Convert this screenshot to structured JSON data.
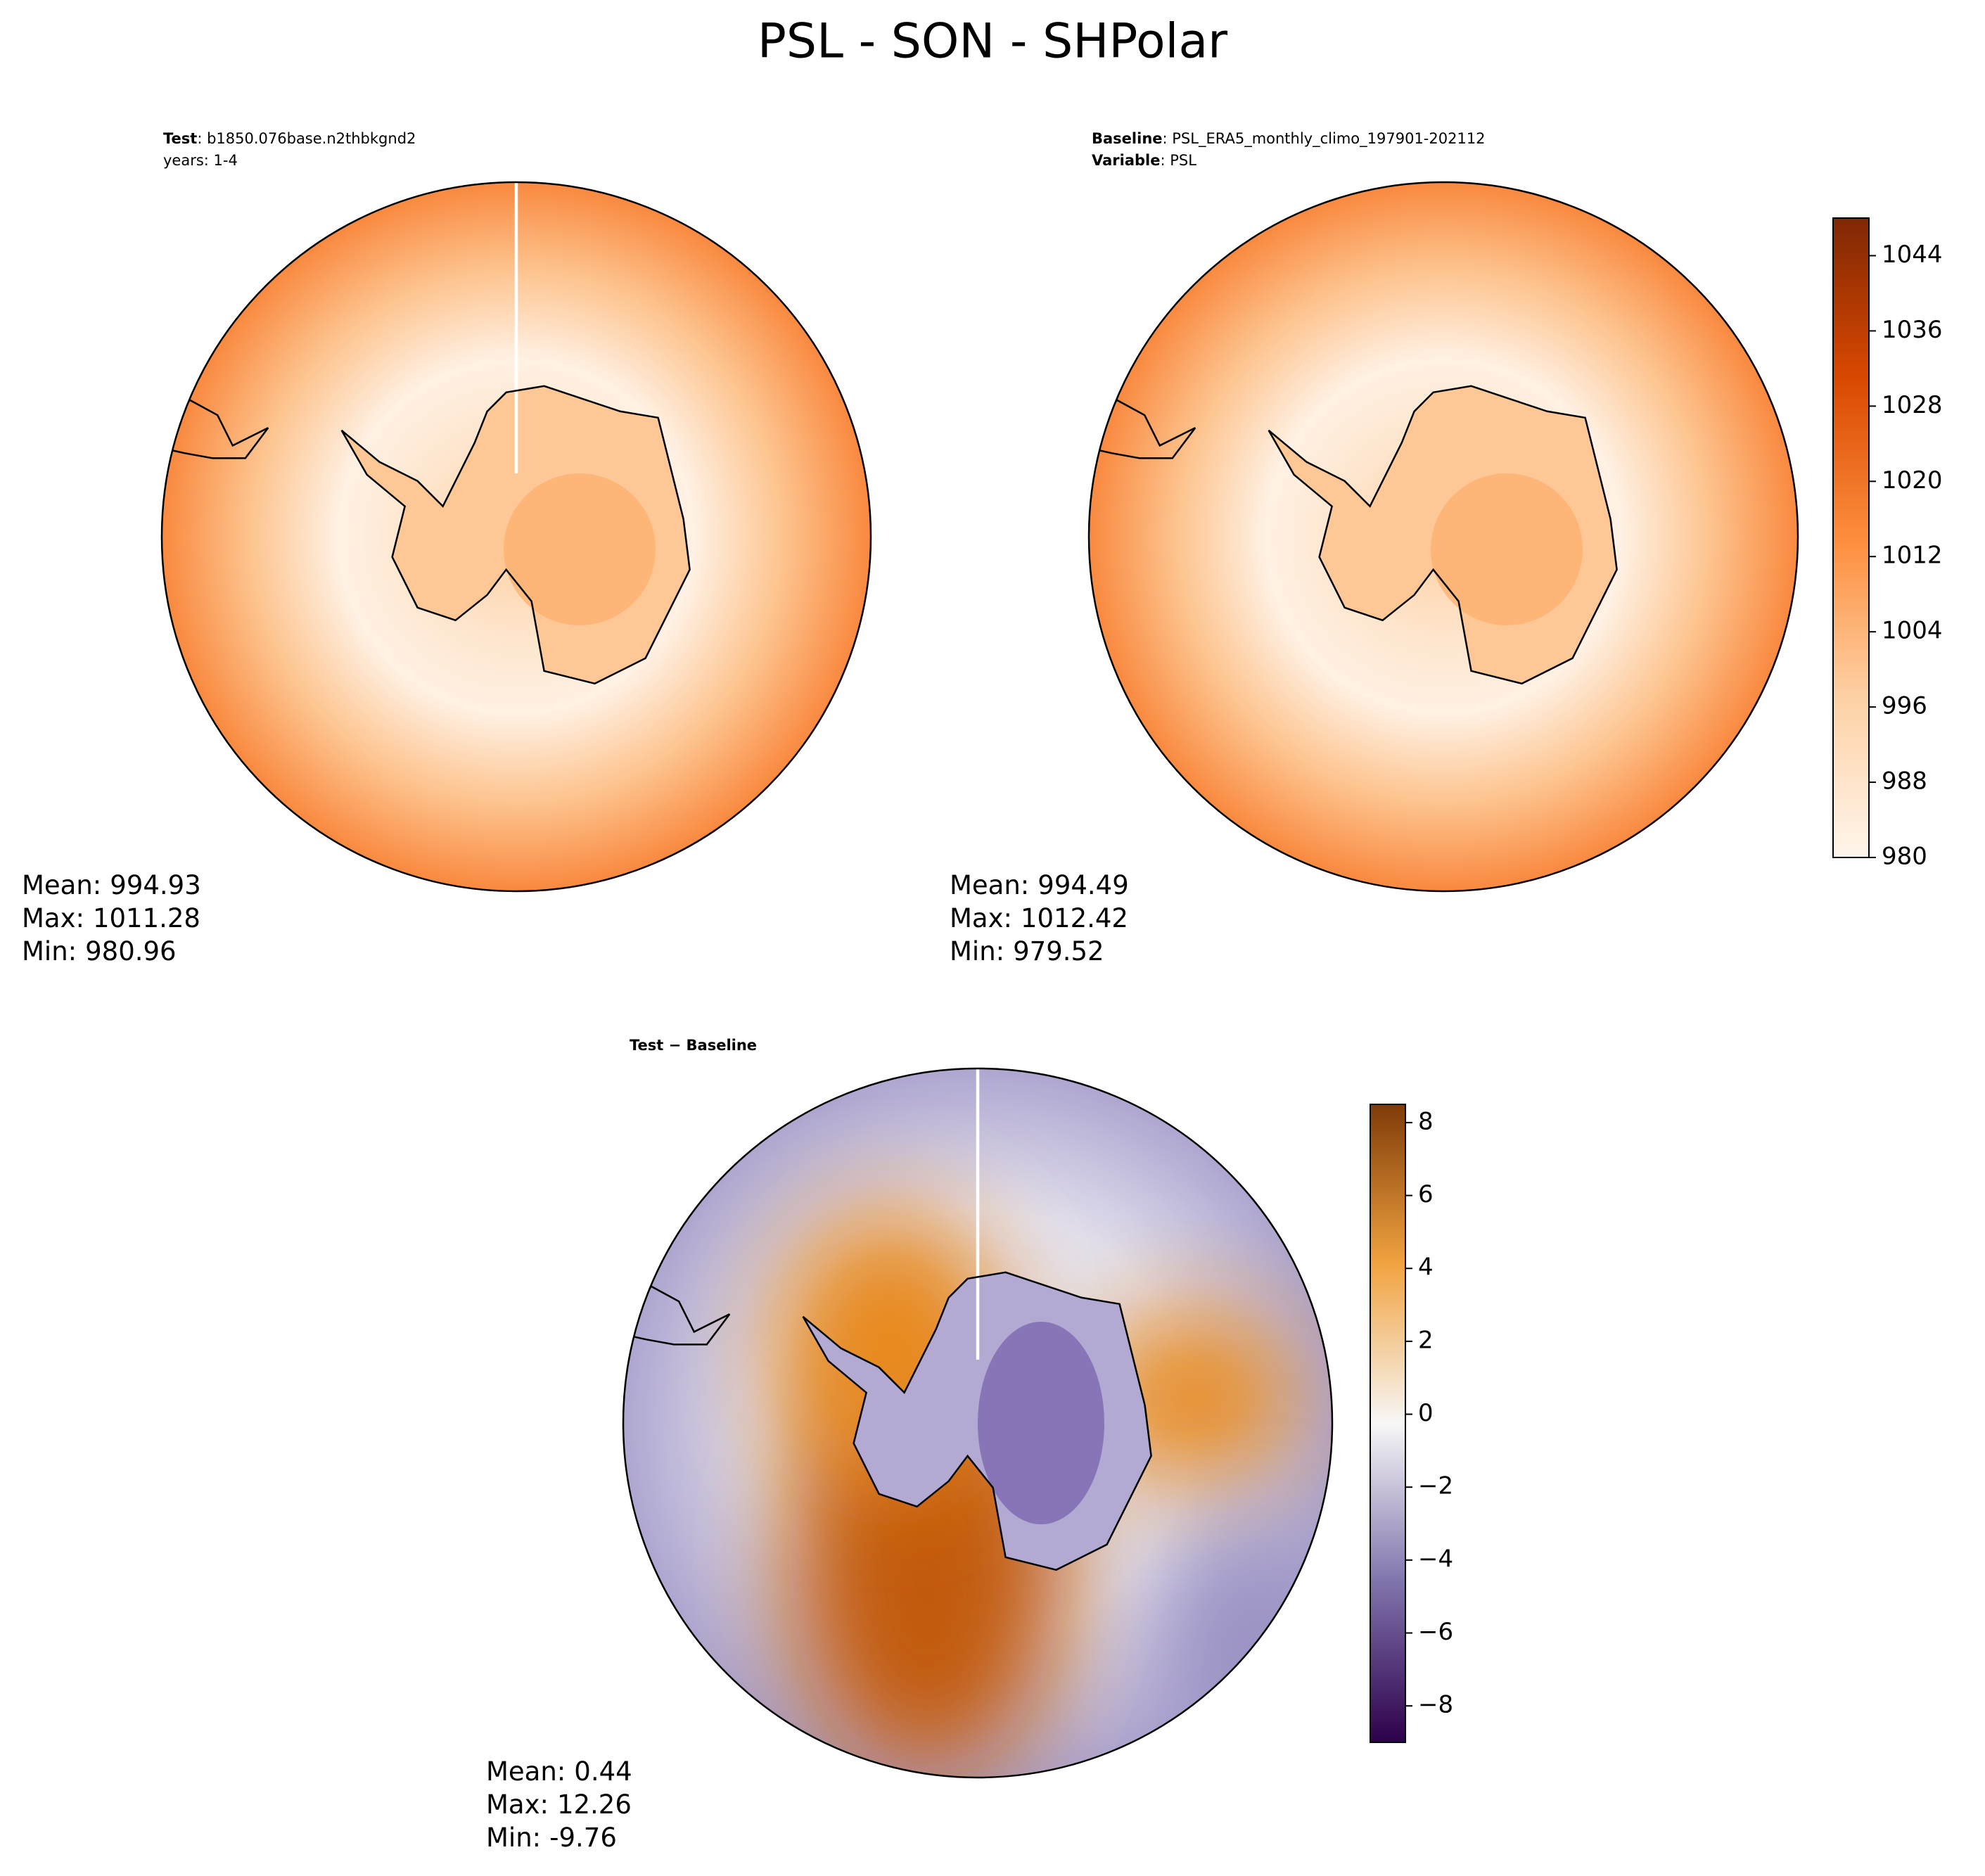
{
  "title": "PSL - SON - SHPolar",
  "chart_data": [
    {
      "type": "map",
      "colormap": "Oranges",
      "header": [
        {
          "bold": "Test",
          "text": ": b1850.076base.n2thbkgnd2"
        },
        {
          "text": "years: 1-4"
        }
      ],
      "stats": {
        "labels": [
          "Mean:",
          "Max:",
          "Min:"
        ],
        "values": [
          994.93,
          1011.28,
          980.96
        ]
      }
    },
    {
      "type": "map",
      "colormap": "Oranges",
      "header": [
        {
          "bold": "Baseline",
          "text": ": PSL_ERA5_monthly_climo_197901-202112"
        },
        {
          "bold": "Variable",
          "text": ": PSL"
        }
      ],
      "stats": {
        "labels": [
          "Mean:",
          "Max:",
          "Min:"
        ],
        "values": [
          994.49,
          1012.42,
          979.52
        ]
      },
      "colorbar": {
        "ylim": [
          980,
          1048
        ],
        "yticks": [
          980,
          988,
          996,
          1004,
          1012,
          1020,
          1028,
          1036,
          1044
        ]
      }
    },
    {
      "type": "map",
      "colormap": "PuOr_r",
      "header": [
        {
          "bold": "Test − Baseline"
        }
      ],
      "stats": {
        "labels": [
          "Mean:",
          "Max:",
          "Min:"
        ],
        "values": [
          0.44,
          12.26,
          -9.76
        ]
      },
      "colorbar": {
        "ylim": [
          -9,
          8.5
        ],
        "yticks": [
          {
            "value": -8,
            "label": "−8"
          },
          {
            "value": -6,
            "label": "−6"
          },
          {
            "value": -4,
            "label": "−4"
          },
          {
            "value": -2,
            "label": "−2"
          },
          0,
          2,
          4,
          6,
          8
        ]
      }
    }
  ]
}
